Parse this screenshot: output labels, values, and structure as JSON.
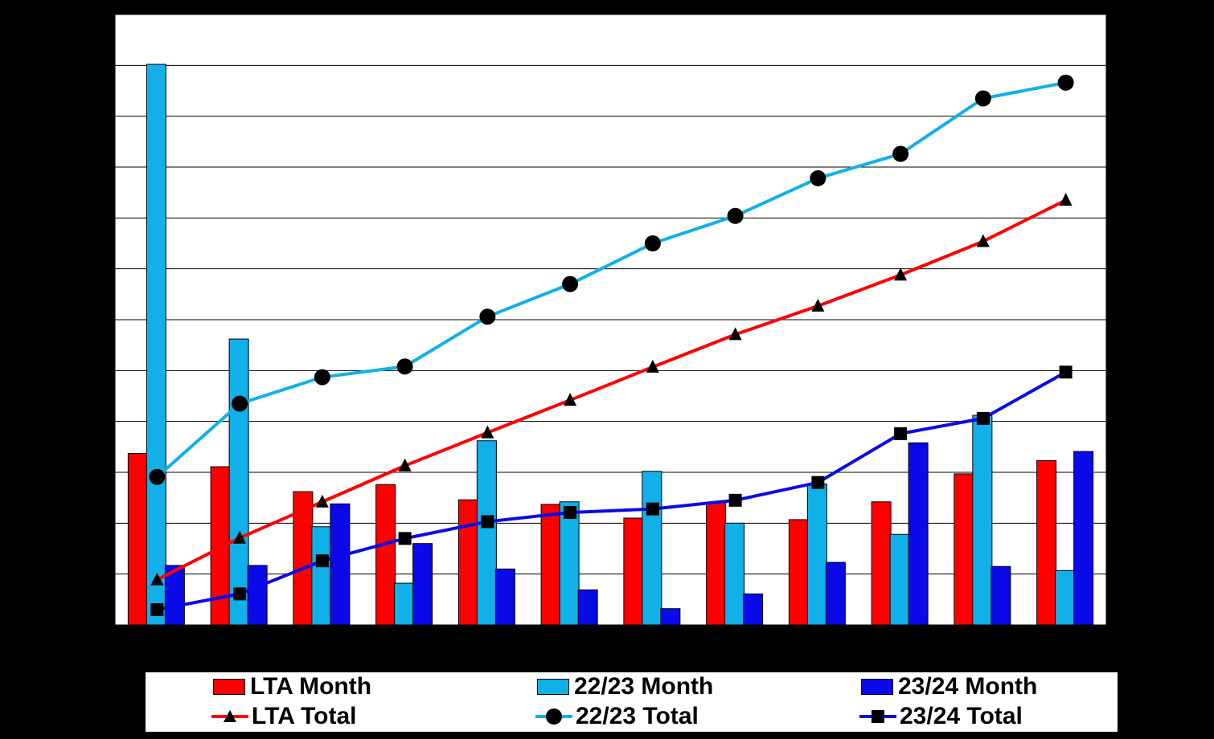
{
  "chart_data": {
    "type": "bar",
    "title": "",
    "xlabel": "",
    "ylabel": "",
    "ylim": [
      0,
      12
    ],
    "grid": true,
    "categories": [
      "",
      "",
      "",
      "",
      "",
      "",
      "",
      "",
      "",
      "",
      "",
      ""
    ],
    "bar_series": [
      {
        "name": "LTA Month",
        "color": "#ff0000",
        "values": [
          3.37,
          3.11,
          2.62,
          2.76,
          2.46,
          2.37,
          2.1,
          2.4,
          2.07,
          2.42,
          2.97,
          3.23
        ]
      },
      {
        "name": "22/23 Month",
        "color": "#12b0e8",
        "values": [
          11.02,
          5.62,
          1.93,
          0.82,
          3.62,
          2.42,
          3.02,
          2.0,
          2.77,
          1.78,
          4.12,
          1.07
        ]
      },
      {
        "name": "23/24 Month",
        "color": "#0a0ae8",
        "values": [
          1.17,
          1.17,
          2.38,
          1.6,
          1.1,
          0.69,
          0.32,
          0.61,
          1.23,
          3.58,
          1.15,
          3.41
        ]
      }
    ],
    "line_series": [
      {
        "name": "LTA Total",
        "color": "#ff0000",
        "marker": "triangle",
        "values": [
          0.89,
          1.71,
          2.42,
          3.13,
          3.78,
          4.42,
          5.07,
          5.71,
          6.27,
          6.88,
          7.54,
          8.35
        ]
      },
      {
        "name": "22/23 Total",
        "color": "#12b0e8",
        "marker": "circle",
        "values": [
          2.91,
          4.35,
          4.87,
          5.08,
          6.06,
          6.7,
          7.5,
          8.04,
          8.78,
          9.26,
          10.35,
          10.66
        ]
      },
      {
        "name": "23/24 Total",
        "color": "#0a0ae8",
        "marker": "square",
        "values": [
          0.3,
          0.61,
          1.26,
          1.7,
          2.03,
          2.21,
          2.28,
          2.45,
          2.8,
          3.76,
          4.06,
          4.97
        ]
      }
    ]
  },
  "legend": {
    "lta_month": "LTA Month",
    "m2223_month": "22/23 Month",
    "m2324_month": "23/24 Month",
    "lta_total": "LTA Total",
    "m2223_total": "22/23 Total",
    "m2324_total": "23/24 Total"
  }
}
